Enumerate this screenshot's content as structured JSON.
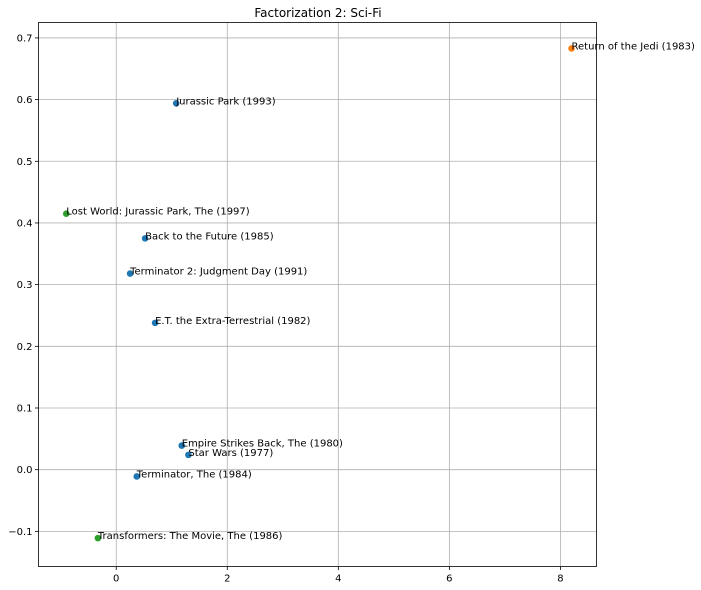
{
  "chart_data": {
    "type": "scatter",
    "title": "Factorization 2: Sci-Fi",
    "xlabel": "",
    "ylabel": "",
    "xlim": [
      -1.4,
      8.65
    ],
    "ylim": [
      -0.157,
      0.725
    ],
    "grid": true,
    "x_ticks": [
      0,
      2,
      4,
      6,
      8
    ],
    "x_tick_labels": [
      "0",
      "2",
      "4",
      "6",
      "8"
    ],
    "y_ticks": [
      -0.1,
      0.0,
      0.1,
      0.2,
      0.3,
      0.4,
      0.5,
      0.6,
      0.7
    ],
    "y_tick_labels": [
      "−0.1",
      "0.0",
      "0.1",
      "0.2",
      "0.3",
      "0.4",
      "0.5",
      "0.6",
      "0.7"
    ],
    "colors": {
      "blue": "#1f77b4",
      "orange": "#ff7f0e",
      "green": "#2ca02c"
    },
    "points": [
      {
        "label": "Return of the Jedi (1983)",
        "x": 8.2,
        "y": 0.683,
        "color": "orange"
      },
      {
        "label": "Jurassic Park (1993)",
        "x": 1.08,
        "y": 0.594,
        "color": "blue"
      },
      {
        "label": "Lost World: Jurassic Park, The (1997)",
        "x": -0.9,
        "y": 0.415,
        "color": "green"
      },
      {
        "label": "Back to the Future (1985)",
        "x": 0.52,
        "y": 0.375,
        "color": "blue"
      },
      {
        "label": "Terminator 2: Judgment Day (1991)",
        "x": 0.25,
        "y": 0.318,
        "color": "blue"
      },
      {
        "label": "E.T. the Extra-Terrestrial (1982)",
        "x": 0.7,
        "y": 0.238,
        "color": "blue"
      },
      {
        "label": "Empire Strikes Back, The (1980)",
        "x": 1.18,
        "y": 0.039,
        "color": "blue"
      },
      {
        "label": "Star Wars (1977)",
        "x": 1.3,
        "y": 0.024,
        "color": "blue"
      },
      {
        "label": "Terminator, The (1984)",
        "x": 0.37,
        "y": -0.011,
        "color": "blue"
      },
      {
        "label": "Transformers: The Movie, The (1986)",
        "x": -0.33,
        "y": -0.111,
        "color": "green"
      }
    ]
  }
}
